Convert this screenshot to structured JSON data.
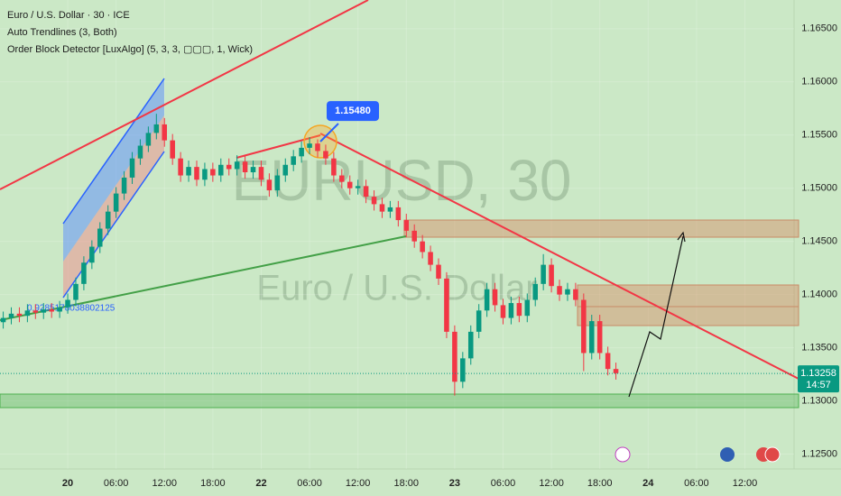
{
  "chart_data": {
    "type": "candlestick",
    "title": "Euro / U.S. Dollar · 30 · ICE",
    "indicators": [
      "Auto Trendlines (3, Both)",
      "Order Block Detector [LuxAlgo] (5, 3, 3, ▢▢▢, 1, Wick)"
    ],
    "watermark": "EURUSD, 30",
    "watermark_subtitle": "Euro / U.S. Dollar",
    "up_color": "#089981",
    "down_color": "#f23645",
    "x": [
      -8,
      -7,
      -6,
      -5,
      -4,
      -3,
      -2,
      -1,
      0,
      1,
      2,
      3,
      4,
      5,
      6,
      7,
      8,
      9,
      10,
      11,
      12,
      13,
      14,
      15,
      16,
      17,
      18,
      19,
      20,
      21,
      22,
      23,
      24,
      25,
      26,
      27,
      28,
      29,
      30,
      31,
      32,
      33,
      34,
      35,
      36,
      37,
      38,
      39,
      40,
      41,
      42,
      43,
      44,
      45,
      46,
      47,
      48,
      49,
      50,
      51,
      52,
      53,
      54,
      55,
      56,
      57,
      58,
      59,
      60,
      61,
      62,
      63,
      64,
      65,
      66,
      67,
      68
    ],
    "open": [
      1.1374,
      1.1378,
      1.1382,
      1.138,
      1.1385,
      1.1383,
      1.1386,
      1.1384,
      1.1388,
      1.1395,
      1.141,
      1.143,
      1.1445,
      1.1462,
      1.1478,
      1.1495,
      1.151,
      1.1528,
      1.154,
      1.1552,
      1.156,
      1.1545,
      1.1528,
      1.1512,
      1.152,
      1.1508,
      1.1518,
      1.1512,
      1.1522,
      1.1518,
      1.1525,
      1.1515,
      1.152,
      1.1508,
      1.1498,
      1.1512,
      1.1522,
      1.153,
      1.1538,
      1.1542,
      1.1535,
      1.1528,
      1.1512,
      1.1506,
      1.15,
      1.1502,
      1.1492,
      1.1485,
      1.1478,
      1.1482,
      1.147,
      1.146,
      1.145,
      1.144,
      1.1428,
      1.1415,
      1.1365,
      1.1318,
      1.134,
      1.1365,
      1.1385,
      1.1405,
      1.139,
      1.1378,
      1.1392,
      1.138,
      1.1395,
      1.141,
      1.1428,
      1.1408,
      1.14,
      1.1405,
      1.1395,
      1.1345,
      1.1375,
      1.1345,
      1.133
    ],
    "close": [
      1.1378,
      1.1382,
      1.138,
      1.1385,
      1.1383,
      1.1386,
      1.1384,
      1.1388,
      1.1395,
      1.141,
      1.143,
      1.1445,
      1.1462,
      1.1478,
      1.1495,
      1.151,
      1.1528,
      1.154,
      1.1552,
      1.156,
      1.1545,
      1.1528,
      1.1512,
      1.152,
      1.1508,
      1.1518,
      1.1512,
      1.1522,
      1.1518,
      1.1525,
      1.1515,
      1.152,
      1.1508,
      1.1498,
      1.1512,
      1.1522,
      1.153,
      1.1538,
      1.1542,
      1.1535,
      1.1528,
      1.1512,
      1.1506,
      1.15,
      1.1502,
      1.1492,
      1.1485,
      1.1478,
      1.1482,
      1.147,
      1.146,
      1.145,
      1.144,
      1.1428,
      1.1415,
      1.1365,
      1.1318,
      1.134,
      1.1365,
      1.1385,
      1.1405,
      1.139,
      1.1378,
      1.1392,
      1.138,
      1.1395,
      1.141,
      1.1428,
      1.1408,
      1.14,
      1.1405,
      1.1395,
      1.1345,
      1.1375,
      1.1345,
      1.133,
      1.1326
    ],
    "high": [
      1.1384,
      1.1388,
      1.1388,
      1.1391,
      1.1391,
      1.1392,
      1.1392,
      1.1394,
      1.1401,
      1.1416,
      1.1436,
      1.1451,
      1.1468,
      1.1484,
      1.1501,
      1.1516,
      1.1534,
      1.1546,
      1.1558,
      1.157,
      1.1566,
      1.1551,
      1.1534,
      1.1526,
      1.1526,
      1.1524,
      1.1524,
      1.1528,
      1.1528,
      1.1531,
      1.1531,
      1.1526,
      1.1526,
      1.1514,
      1.1518,
      1.1528,
      1.1536,
      1.1544,
      1.1548,
      1.1546,
      1.1541,
      1.1534,
      1.1518,
      1.1512,
      1.1508,
      1.1508,
      1.1498,
      1.1491,
      1.1488,
      1.1488,
      1.1476,
      1.1466,
      1.1456,
      1.1446,
      1.1434,
      1.1421,
      1.1371,
      1.1346,
      1.1371,
      1.1391,
      1.1411,
      1.1411,
      1.1396,
      1.1398,
      1.1398,
      1.1401,
      1.1416,
      1.1438,
      1.1434,
      1.1414,
      1.1411,
      1.1411,
      1.1401,
      1.1381,
      1.1381,
      1.1351,
      1.1336
    ],
    "low": [
      1.1368,
      1.1372,
      1.1374,
      1.1374,
      1.1377,
      1.1377,
      1.1378,
      1.1378,
      1.1382,
      1.1389,
      1.1404,
      1.1424,
      1.1439,
      1.1456,
      1.1472,
      1.1489,
      1.1504,
      1.1522,
      1.1534,
      1.1546,
      1.1539,
      1.1522,
      1.1506,
      1.1506,
      1.1502,
      1.1502,
      1.1506,
      1.1506,
      1.1512,
      1.1512,
      1.1509,
      1.1509,
      1.1502,
      1.1492,
      1.1492,
      1.1506,
      1.1516,
      1.1524,
      1.1532,
      1.1529,
      1.1522,
      1.1506,
      1.15,
      1.1494,
      1.1494,
      1.1486,
      1.1479,
      1.1472,
      1.1472,
      1.1464,
      1.1454,
      1.1444,
      1.1434,
      1.1422,
      1.1409,
      1.1359,
      1.1305,
      1.1312,
      1.1334,
      1.1359,
      1.1379,
      1.1384,
      1.1372,
      1.1372,
      1.1374,
      1.1374,
      1.1389,
      1.1404,
      1.1402,
      1.1394,
      1.1394,
      1.1389,
      1.1328,
      1.1339,
      1.1339,
      1.1324,
      1.132
    ],
    "xlim": [
      -8.4,
      90.1
    ],
    "xticks": [
      {
        "value": 0,
        "label": "20"
      },
      {
        "value": 6,
        "label": "06:00"
      },
      {
        "value": 12,
        "label": "12:00"
      },
      {
        "value": 18,
        "label": "18:00"
      },
      {
        "value": 24,
        "label": "22"
      },
      {
        "value": 30,
        "label": "06:00"
      },
      {
        "value": 36,
        "label": "12:00"
      },
      {
        "value": 42,
        "label": "18:00"
      },
      {
        "value": 48,
        "label": "23"
      },
      {
        "value": 54,
        "label": "06:00"
      },
      {
        "value": 60,
        "label": "12:00"
      },
      {
        "value": 66,
        "label": "18:00"
      },
      {
        "value": 72,
        "label": "24"
      },
      {
        "value": 78,
        "label": "06:00"
      },
      {
        "value": 84,
        "label": "12:00"
      }
    ],
    "ylim": [
      1.1236,
      1.1677
    ],
    "yticks": [
      {
        "value": 1.165,
        "label": "1.16500"
      },
      {
        "value": 1.16,
        "label": "1.16000"
      },
      {
        "value": 1.155,
        "label": "1.15500"
      },
      {
        "value": 1.15,
        "label": "1.15000"
      },
      {
        "value": 1.145,
        "label": "1.14500"
      },
      {
        "value": 1.14,
        "label": "1.14000"
      },
      {
        "value": 1.135,
        "label": "1.13500"
      },
      {
        "value": 1.13,
        "label": "1.13000"
      },
      {
        "value": 1.125,
        "label": "1.12500"
      }
    ],
    "high_marker": {
      "value": 1.1548,
      "label": "1.15480"
    },
    "trendline_label": "0.9285178038802125",
    "last_price": {
      "value": 1.13258,
      "label": "1.13258",
      "countdown": "14:57"
    }
  }
}
